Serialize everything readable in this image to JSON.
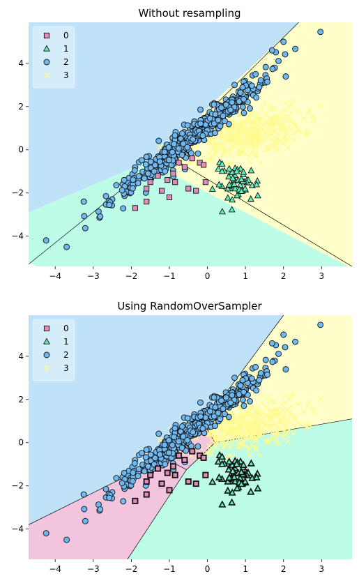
{
  "chart_data": [
    {
      "type": "scatter",
      "title": "Without resampling",
      "xlim": [
        -4.7,
        3.8
      ],
      "ylim": [
        -5.4,
        5.9
      ],
      "xticks": [
        "−4",
        "−3",
        "−2",
        "−1",
        "0",
        "1",
        "2",
        "3"
      ],
      "yticks": [
        "−4",
        "−2",
        "0",
        "2",
        "4"
      ],
      "legend": {
        "placement": "top-left",
        "entries": [
          "0",
          "1",
          "2",
          "3"
        ]
      },
      "class_colors": {
        "0": "#f2c4de",
        "1": "#bdfce7",
        "2": "#bfe2f9",
        "3": "#ffffcc"
      },
      "marker_colors": {
        "0": "#e08cb8",
        "1": "#5ff0bf",
        "2": "#6fb8f0",
        "3": "#fffa90"
      },
      "regions": [
        {
          "class": "2",
          "polygon": [
            [
              -4.7,
              5.9
            ],
            [
              2.4,
              5.9
            ],
            [
              0.1,
              2.1
            ],
            [
              -1.1,
              -0.2
            ],
            [
              -4.7,
              -2.9
            ]
          ]
        },
        {
          "class": "3",
          "polygon": [
            [
              2.4,
              5.9
            ],
            [
              3.8,
              5.9
            ],
            [
              3.8,
              -5.4
            ],
            [
              3.7,
              -5.4
            ],
            [
              -0.85,
              -1.2
            ],
            [
              -1.1,
              -0.2
            ],
            [
              0.1,
              2.1
            ]
          ]
        },
        {
          "class": "1",
          "polygon": [
            [
              -4.7,
              -2.9
            ],
            [
              -1.1,
              -0.2
            ],
            [
              -0.85,
              -1.2
            ],
            [
              3.7,
              -5.4
            ],
            [
              -4.5,
              -5.4
            ],
            [
              -4.7,
              -5.2
            ]
          ]
        }
      ],
      "boundaries": [
        [
          [
            -4.7,
            -5.3
          ],
          [
            -1.1,
            -0.2
          ]
        ],
        [
          [
            -1.1,
            -0.2
          ],
          [
            2.4,
            5.9
          ]
        ],
        [
          [
            -1.1,
            -0.2
          ],
          [
            3.8,
            -5.4
          ]
        ]
      ]
    },
    {
      "type": "scatter",
      "title": "Using RandomOverSampler",
      "xlim": [
        -4.7,
        3.8
      ],
      "ylim": [
        -5.4,
        5.9
      ],
      "xticks": [
        "−4",
        "−3",
        "−2",
        "−1",
        "0",
        "1",
        "2",
        "3"
      ],
      "yticks": [
        "−4",
        "−2",
        "0",
        "2",
        "4"
      ],
      "legend": {
        "placement": "top-left",
        "entries": [
          "0",
          "1",
          "2",
          "3"
        ]
      },
      "class_colors": {
        "0": "#f2c4de",
        "1": "#bdfce7",
        "2": "#bfe2f9",
        "3": "#ffffcc"
      },
      "marker_colors": {
        "0": "#e08cb8",
        "1": "#5ff0bf",
        "2": "#6fb8f0",
        "3": "#fffa90"
      },
      "regions": [
        {
          "class": "2",
          "polygon": [
            [
              -4.7,
              5.9
            ],
            [
              2.0,
              5.9
            ],
            [
              -0.1,
              0.9
            ],
            [
              -1.15,
              -0.7
            ],
            [
              -4.7,
              -3.8
            ]
          ]
        },
        {
          "class": "3",
          "polygon": [
            [
              2.0,
              5.9
            ],
            [
              3.8,
              5.9
            ],
            [
              3.8,
              1.1
            ],
            [
              0.2,
              0.0
            ],
            [
              -0.1,
              0.9
            ]
          ]
        },
        {
          "class": "0",
          "polygon": [
            [
              -4.7,
              -3.8
            ],
            [
              -1.15,
              -0.7
            ],
            [
              -0.1,
              0.9
            ],
            [
              0.2,
              0.0
            ],
            [
              -0.55,
              -1.25
            ],
            [
              -2.1,
              -5.4
            ],
            [
              -4.7,
              -5.4
            ]
          ]
        },
        {
          "class": "1",
          "polygon": [
            [
              0.2,
              0.0
            ],
            [
              3.8,
              1.1
            ],
            [
              3.8,
              -5.4
            ],
            [
              -2.1,
              -5.4
            ],
            [
              -0.55,
              -1.25
            ]
          ]
        }
      ],
      "boundaries": [
        [
          [
            -4.7,
            -3.8
          ],
          [
            -1.15,
            -0.7
          ]
        ],
        [
          [
            -1.15,
            -0.7
          ],
          [
            -0.1,
            0.9
          ]
        ],
        [
          [
            -0.1,
            0.9
          ],
          [
            2.0,
            5.9
          ]
        ],
        [
          [
            -0.1,
            0.9
          ],
          [
            0.2,
            0.0
          ]
        ],
        [
          [
            0.2,
            0.0
          ],
          [
            3.8,
            1.1
          ]
        ],
        [
          [
            0.2,
            0.0
          ],
          [
            -0.55,
            -1.25
          ]
        ],
        [
          [
            -0.55,
            -1.25
          ],
          [
            -2.1,
            -5.4
          ]
        ],
        [
          [
            -0.55,
            -1.25
          ],
          [
            -1.15,
            -0.7
          ]
        ]
      ]
    }
  ]
}
